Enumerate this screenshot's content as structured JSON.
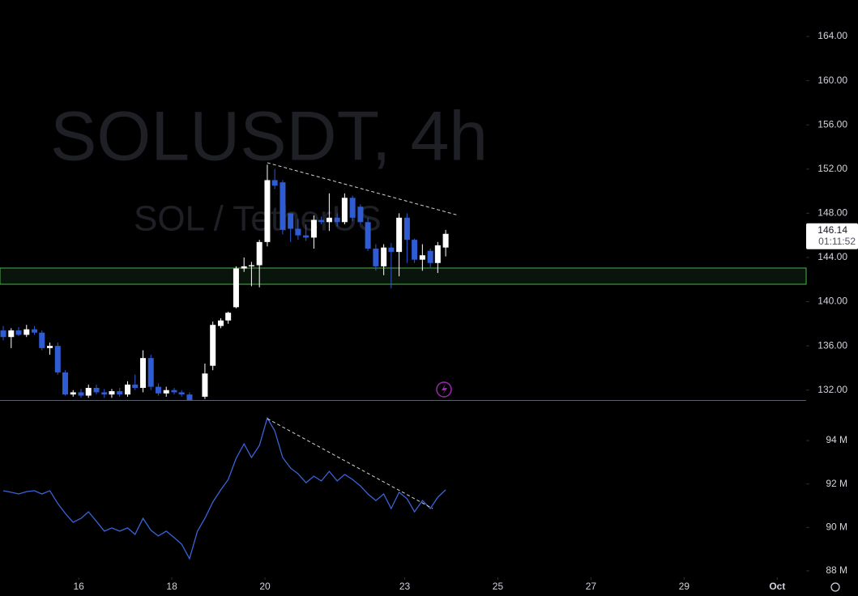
{
  "chart_data": [
    {
      "type": "candlestick",
      "watermark": "SOLUSDT, 4h",
      "subtitle": "SOL / TetherUS",
      "x": [
        14.38,
        14.55,
        14.71,
        14.88,
        15.05,
        15.21,
        15.38,
        15.55,
        15.71,
        15.88,
        16.05,
        16.21,
        16.38,
        16.55,
        16.71,
        16.88,
        17.05,
        17.21,
        17.38,
        17.55,
        17.71,
        17.88,
        18.05,
        18.21,
        18.38,
        18.55,
        18.71,
        18.88,
        19.05,
        19.21,
        19.38,
        19.55,
        19.71,
        19.88,
        20.05,
        20.21,
        20.38,
        20.55,
        20.71,
        20.88,
        21.05,
        21.21,
        21.38,
        21.55,
        21.71,
        21.88,
        22.05,
        22.21,
        22.38,
        22.55,
        22.71,
        22.88,
        23.05,
        23.21,
        23.38,
        23.55,
        23.71,
        23.88
      ],
      "open": [
        137.4,
        136.8,
        137.4,
        137.0,
        137.5,
        137.2,
        135.8,
        136.0,
        133.6,
        131.6,
        131.8,
        131.5,
        132.2,
        131.8,
        131.6,
        131.9,
        131.6,
        132.5,
        132.2,
        134.9,
        132.3,
        131.7,
        132.0,
        131.8,
        131.6,
        130.4,
        131.4,
        134.2,
        137.8,
        138.3,
        139.5,
        143.0,
        143.2,
        143.3,
        145.4,
        151.0,
        150.8,
        148.0,
        146.6,
        146.0,
        145.8,
        147.4,
        147.2,
        147.6,
        147.2,
        149.4,
        148.6,
        147.2,
        144.8,
        143.2,
        144.9,
        144.5,
        147.6,
        145.6,
        143.8,
        144.6,
        143.5,
        144.9
      ],
      "high": [
        137.8,
        137.6,
        137.7,
        137.9,
        137.8,
        137.4,
        136.3,
        136.3,
        133.8,
        132.0,
        132.1,
        132.5,
        132.5,
        132.1,
        132.1,
        132.2,
        132.8,
        133.4,
        135.6,
        135.2,
        132.6,
        132.3,
        132.2,
        132.0,
        131.8,
        131.0,
        134.4,
        138.2,
        138.5,
        139.1,
        143.2,
        144.0,
        143.6,
        145.6,
        152.4,
        152.0,
        151.0,
        148.0,
        147.5,
        147.0,
        147.8,
        147.7,
        149.8,
        148.0,
        149.8,
        149.6,
        148.8,
        147.6,
        145.2,
        145.2,
        145.3,
        148.0,
        148.0,
        145.7,
        145.2,
        144.8,
        145.4,
        146.5
      ],
      "low": [
        136.5,
        135.8,
        136.9,
        136.8,
        137.0,
        135.6,
        135.2,
        133.4,
        131.5,
        131.4,
        131.3,
        131.3,
        131.6,
        131.3,
        131.3,
        131.4,
        131.4,
        132.0,
        131.8,
        132.0,
        131.5,
        131.4,
        131.6,
        131.4,
        130.0,
        129.8,
        131.2,
        133.8,
        137.6,
        138.0,
        139.4,
        142.7,
        141.4,
        141.3,
        145.0,
        150.2,
        146.1,
        145.4,
        145.6,
        145.5,
        144.8,
        147.0,
        146.4,
        146.8,
        147.0,
        147.3,
        147.0,
        144.6,
        142.8,
        142.4,
        141.2,
        142.3,
        143.5,
        143.5,
        142.8,
        143.0,
        142.6,
        144.1
      ],
      "close": [
        136.8,
        137.4,
        137.0,
        137.5,
        137.2,
        135.8,
        136.0,
        133.6,
        131.6,
        131.8,
        131.5,
        132.2,
        131.8,
        131.6,
        131.9,
        131.6,
        132.5,
        132.2,
        134.9,
        132.3,
        131.7,
        132.0,
        131.8,
        131.6,
        130.4,
        130.8,
        133.5,
        137.9,
        138.3,
        139.0,
        143.0,
        143.2,
        143.3,
        145.4,
        151.0,
        150.5,
        146.5,
        146.6,
        146.0,
        145.8,
        147.4,
        147.2,
        147.6,
        147.2,
        149.4,
        147.6,
        147.2,
        144.8,
        143.2,
        144.9,
        144.5,
        147.6,
        145.6,
        143.8,
        144.2,
        143.5,
        145.1,
        146.14
      ],
      "up_color": "#ffffff",
      "down_color": "#2f5bd3",
      "last_price": 146.14,
      "last_price_label": "146.14",
      "countdown": "01:11:52",
      "xlim": [
        14.31,
        31.62
      ],
      "ylim": [
        131.1,
        167.3
      ],
      "yticks": [
        {
          "value": 132,
          "label": "132.00"
        },
        {
          "value": 136,
          "label": "136.00"
        },
        {
          "value": 140,
          "label": "140.00"
        },
        {
          "value": 144,
          "label": "144.00"
        },
        {
          "value": 148,
          "label": "148.00"
        },
        {
          "value": 152,
          "label": "152.00"
        },
        {
          "value": 156,
          "label": "156.00"
        },
        {
          "value": 160,
          "label": "160.00"
        },
        {
          "value": 164,
          "label": "164.00"
        }
      ]
    },
    {
      "type": "line",
      "x": [
        14.38,
        14.55,
        14.71,
        14.88,
        15.05,
        15.21,
        15.38,
        15.55,
        15.71,
        15.88,
        16.05,
        16.21,
        16.38,
        16.55,
        16.71,
        16.88,
        17.05,
        17.21,
        17.38,
        17.55,
        17.71,
        17.88,
        18.05,
        18.21,
        18.38,
        18.55,
        18.71,
        18.88,
        19.05,
        19.21,
        19.38,
        19.55,
        19.71,
        19.88,
        20.05,
        20.21,
        20.38,
        20.55,
        20.71,
        20.88,
        21.05,
        21.21,
        21.38,
        21.55,
        21.71,
        21.88,
        22.05,
        22.21,
        22.38,
        22.55,
        22.71,
        22.88,
        23.05,
        23.21,
        23.38,
        23.55,
        23.71,
        23.88
      ],
      "values": [
        91.69,
        91.62,
        91.54,
        91.65,
        91.69,
        91.54,
        91.69,
        91.1,
        90.65,
        90.24,
        90.42,
        90.72,
        90.28,
        89.83,
        89.98,
        89.83,
        89.98,
        89.68,
        90.42,
        89.87,
        89.61,
        89.83,
        89.53,
        89.23,
        88.56,
        89.83,
        90.42,
        91.17,
        91.73,
        92.21,
        93.18,
        93.85,
        93.22,
        93.78,
        95.04,
        94.45,
        93.22,
        92.73,
        92.47,
        92.06,
        92.36,
        92.14,
        92.58,
        92.14,
        92.44,
        92.21,
        91.91,
        91.54,
        91.24,
        91.54,
        90.87,
        91.62,
        91.32,
        90.72,
        91.24,
        90.87,
        91.39,
        91.73
      ],
      "color": "#3a63d8",
      "xlim": [
        14.31,
        31.62
      ],
      "xticks": [
        16,
        18,
        20,
        23,
        25,
        27,
        29,
        {
          "value": 31,
          "label": "Oct"
        }
      ],
      "ylim": [
        87.7,
        95.83
      ],
      "yticks": [
        {
          "value": 88,
          "label": "88 M"
        },
        {
          "value": 90,
          "label": "90 M"
        },
        {
          "value": 92,
          "label": "92 M"
        },
        {
          "value": 94,
          "label": "94 M"
        }
      ]
    }
  ]
}
